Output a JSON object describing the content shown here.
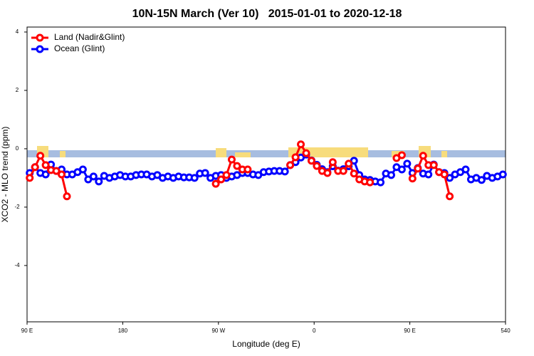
{
  "chart_data": {
    "type": "line",
    "title": "10N-15N March (Ver 10)   2015-01-01 to 2020-12-18",
    "x_label": "Longitude (deg E)",
    "y_label": "XCO2 - MLO trend (ppm)",
    "xlim": [
      90,
      540
    ],
    "xticks": [
      {
        "value": 90,
        "label": "90 E"
      },
      180,
      {
        "value": 270,
        "label": "90 W"
      },
      {
        "value": 360,
        "label": "0"
      },
      {
        "value": 450,
        "label": "90 E"
      },
      540
    ],
    "ylim": [
      -5.93,
      4.17
    ],
    "yticks": [
      -4,
      -2,
      0,
      2,
      4
    ],
    "legend": "top-left",
    "x": [
      92.5,
      97.5,
      102.5,
      107.5,
      112.5,
      117.5,
      122.5,
      127.5,
      132.5,
      137.5,
      142.5,
      147.5,
      152.5,
      157.5,
      162.5,
      167.5,
      172.5,
      177.5,
      182.5,
      187.5,
      192.5,
      197.5,
      202.5,
      207.5,
      212.5,
      217.5,
      222.5,
      227.5,
      232.5,
      237.5,
      242.5,
      247.5,
      252.5,
      257.5,
      262.5,
      267.5,
      272.5,
      277.5,
      282.5,
      287.5,
      292.5,
      297.5,
      302.5,
      307.5,
      312.5,
      317.5,
      322.5,
      327.5,
      332.5,
      337.5,
      342.5,
      347.5,
      352.5,
      357.5,
      362.5,
      367.5,
      372.5,
      377.5,
      382.5,
      387.5,
      392.5,
      397.5,
      402.5,
      407.5,
      412.5,
      417.5,
      422.5,
      427.5,
      432.5,
      437.5,
      442.5,
      447.5,
      452.5,
      457.5,
      462.5,
      467.5,
      472.5,
      477.5,
      482.5,
      487.5,
      492.5,
      497.5,
      502.5,
      507.5,
      512.5,
      517.5,
      522.5,
      527.5,
      532.5,
      537.5
    ],
    "series": [
      {
        "name": "Ocean (Glint)",
        "color": "#0000ff",
        "values": [
          -0.83,
          -0.63,
          -0.83,
          -0.88,
          -0.54,
          -0.76,
          -0.71,
          -0.88,
          -0.88,
          -0.8,
          -0.71,
          -1.05,
          -0.95,
          -1.12,
          -0.93,
          -1.0,
          -0.95,
          -0.9,
          -0.95,
          -0.95,
          -0.9,
          -0.88,
          -0.88,
          -0.95,
          -0.9,
          -1.0,
          -0.95,
          -1.0,
          -0.95,
          -0.98,
          -0.98,
          -1.0,
          -0.85,
          -0.83,
          -1.0,
          -0.93,
          -0.9,
          -1.0,
          -0.95,
          -0.9,
          -0.83,
          -0.83,
          -0.88,
          -0.9,
          -0.8,
          -0.78,
          -0.76,
          -0.76,
          -0.78,
          -0.56,
          -0.46,
          -0.3,
          -0.2,
          -0.4,
          -0.55,
          -0.7,
          -0.8,
          -0.6,
          -0.75,
          -0.7,
          -0.6,
          -0.41,
          -0.9,
          -1.05,
          -1.07,
          -1.12,
          -1.15,
          -0.85,
          -0.9,
          -0.63,
          -0.71,
          -0.51,
          -0.83,
          -0.66,
          -0.85,
          -0.88,
          -0.54,
          -0.8,
          -0.83,
          -1.0,
          -0.88,
          -0.8,
          -0.71,
          -1.05,
          -1.0,
          -1.07,
          -0.93,
          -1.0,
          -0.95,
          -0.88
        ]
      },
      {
        "name": "Land (Nadir&Glint)",
        "color": "#ff0000",
        "values": [
          -1.0,
          -0.63,
          -0.24,
          -0.56,
          -0.73,
          -0.76,
          -0.88,
          -1.63,
          null,
          null,
          null,
          null,
          null,
          null,
          null,
          null,
          null,
          null,
          null,
          null,
          null,
          null,
          null,
          null,
          null,
          null,
          null,
          null,
          null,
          null,
          null,
          null,
          null,
          null,
          null,
          -1.2,
          -1.05,
          -0.9,
          -0.37,
          -0.59,
          -0.71,
          -0.71,
          null,
          null,
          null,
          null,
          null,
          null,
          null,
          -0.56,
          -0.29,
          0.15,
          -0.15,
          -0.41,
          -0.59,
          -0.76,
          -0.83,
          -0.46,
          -0.76,
          -0.76,
          -0.51,
          -0.85,
          -1.05,
          -1.12,
          -1.15,
          null,
          null,
          null,
          null,
          -0.32,
          -0.22,
          null,
          -1.02,
          -0.68,
          -0.24,
          -0.56,
          -0.56,
          -0.8,
          -0.88,
          -1.63,
          null,
          null,
          null,
          null,
          null,
          null,
          null,
          null,
          null,
          null
        ]
      }
    ]
  }
}
